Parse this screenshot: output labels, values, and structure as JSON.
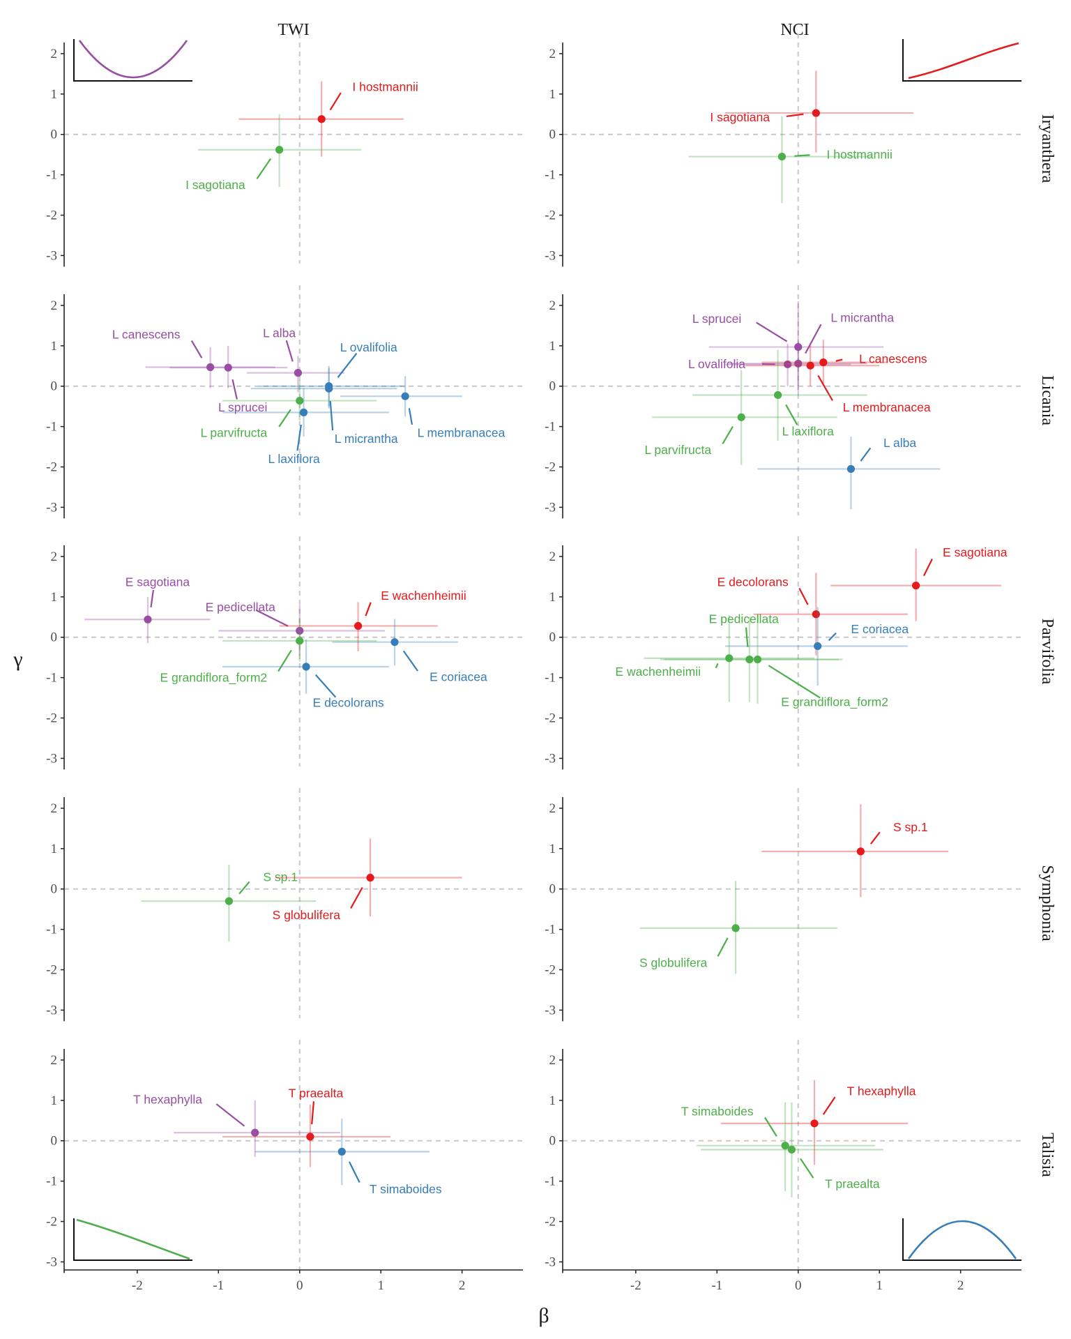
{
  "colors": {
    "red": "#e41a1c",
    "green": "#4daf4a",
    "blue": "#377eb8",
    "purple": "#984ea3"
  },
  "chart_data": {
    "type": "scatter",
    "xlabel": "β",
    "ylabel": "γ",
    "xlim": [
      -2.9,
      2.75
    ],
    "ylim": [
      -3.2,
      2.5
    ],
    "xticks": [
      -2,
      -1,
      0,
      1,
      2
    ],
    "yticks": [
      -3,
      -2,
      -1,
      0,
      1,
      2
    ],
    "grid": false,
    "reference_lines": {
      "x": 0,
      "y": 0,
      "style": "dashed"
    },
    "columns": [
      "TWI",
      "NCI"
    ],
    "rows": [
      "Iryanthera",
      "Licania",
      "Parvifolia",
      "Symphonia",
      "Talisia"
    ],
    "insets": [
      {
        "row": 0,
        "col": 0,
        "position": "top-left",
        "shape": "u-shaped curve",
        "color": "purple"
      },
      {
        "row": 0,
        "col": 1,
        "position": "top-right",
        "shape": "increasing curve",
        "color": "red"
      },
      {
        "row": 4,
        "col": 0,
        "position": "bottom-left",
        "shape": "decreasing curve",
        "color": "green"
      },
      {
        "row": 4,
        "col": 1,
        "position": "bottom-right",
        "shape": "hump-shaped curve",
        "color": "blue"
      }
    ],
    "panels": [
      {
        "row": 0,
        "col": 0,
        "points": [
          {
            "label": "I hostmannii",
            "color": "red",
            "x": 0.27,
            "y": 0.38,
            "xlo": -0.75,
            "xhi": 1.28,
            "ylo": -0.55,
            "yhi": 1.32,
            "lx": 0.65,
            "ly": 1.18,
            "anchor": "start"
          },
          {
            "label": "I sagotiana",
            "color": "green",
            "x": -0.25,
            "y": -0.38,
            "xlo": -1.25,
            "xhi": 0.76,
            "ylo": -1.3,
            "yhi": 0.5,
            "lx": -0.67,
            "ly": -1.25,
            "anchor": "end"
          }
        ]
      },
      {
        "row": 0,
        "col": 1,
        "points": [
          {
            "label": "I sagotiana",
            "color": "red",
            "x": 0.22,
            "y": 0.53,
            "xlo": -0.9,
            "xhi": 1.42,
            "ylo": -0.45,
            "yhi": 1.58,
            "lx": -0.35,
            "ly": 0.43,
            "anchor": "end"
          },
          {
            "label": "I hostmannii",
            "color": "green",
            "x": -0.2,
            "y": -0.55,
            "xlo": -1.35,
            "xhi": 0.9,
            "ylo": -1.7,
            "yhi": 0.45,
            "lx": 0.35,
            "ly": -0.5,
            "anchor": "start"
          }
        ]
      },
      {
        "row": 1,
        "col": 0,
        "points": [
          {
            "label": "L canescens",
            "color": "purple",
            "x": -1.1,
            "y": 0.47,
            "xlo": -1.9,
            "xhi": -0.3,
            "ylo": -0.05,
            "yhi": 0.97,
            "lx": -1.47,
            "ly": 1.28,
            "anchor": "end"
          },
          {
            "label": "L sprucei",
            "color": "purple",
            "x": -0.88,
            "y": 0.46,
            "xlo": -1.6,
            "xhi": -0.15,
            "ylo": -0.05,
            "yhi": 1.0,
            "lx": -0.7,
            "ly": -0.52,
            "anchor": "middle"
          },
          {
            "label": "L alba",
            "color": "purple",
            "x": -0.02,
            "y": 0.33,
            "xlo": -0.65,
            "xhi": 0.55,
            "ylo": -0.15,
            "yhi": 0.75,
            "lx": -0.25,
            "ly": 1.32,
            "anchor": "middle"
          },
          {
            "label": "L ovalifolia",
            "color": "blue",
            "x": 0.36,
            "y": 0.0,
            "xlo": -0.5,
            "xhi": 1.3,
            "ylo": -0.5,
            "yhi": 0.5,
            "lx": 0.85,
            "ly": 0.96,
            "anchor": "middle"
          },
          {
            "label": "L membranacea",
            "color": "blue",
            "x": 1.3,
            "y": -0.25,
            "xlo": 0.5,
            "xhi": 2.0,
            "ylo": -0.75,
            "yhi": 0.25,
            "lx": 1.45,
            "ly": -1.15,
            "anchor": "start"
          },
          {
            "label": "L micrantha",
            "color": "blue",
            "x": 0.36,
            "y": -0.06,
            "xlo": -0.6,
            "xhi": 1.2,
            "ylo": -0.55,
            "yhi": 0.45,
            "lx": 0.43,
            "ly": -1.3,
            "anchor": "start"
          },
          {
            "label": "L parvifructa",
            "color": "green",
            "x": 0.0,
            "y": -0.36,
            "xlo": -0.95,
            "xhi": 0.95,
            "ylo": -0.85,
            "yhi": 0.15,
            "lx": -0.4,
            "ly": -1.15,
            "anchor": "end"
          },
          {
            "label": "L laxiflora",
            "color": "blue",
            "x": 0.05,
            "y": -0.65,
            "xlo": -0.95,
            "xhi": 1.1,
            "ylo": -1.25,
            "yhi": -0.05,
            "lx": -0.07,
            "ly": -1.8,
            "anchor": "middle"
          }
        ]
      },
      {
        "row": 1,
        "col": 1,
        "points": [
          {
            "label": "L sprucei",
            "color": "purple",
            "x": 0.0,
            "y": 0.97,
            "xlo": -1.1,
            "xhi": 1.05,
            "ylo": -0.2,
            "yhi": 2.1,
            "lx": -0.7,
            "ly": 1.67,
            "anchor": "end"
          },
          {
            "label": "L micrantha",
            "color": "purple",
            "x": 0.0,
            "y": 0.56,
            "xlo": -0.85,
            "xhi": 0.85,
            "ylo": 0.0,
            "yhi": 1.1,
            "lx": 0.4,
            "ly": 1.7,
            "anchor": "start"
          },
          {
            "label": "L ovalifolia",
            "color": "purple",
            "x": -0.13,
            "y": 0.54,
            "xlo": -0.9,
            "xhi": 0.65,
            "ylo": 0.0,
            "yhi": 1.05,
            "lx": -0.65,
            "ly": 0.55,
            "anchor": "end"
          },
          {
            "label": "L canescens",
            "color": "red",
            "x": 0.31,
            "y": 0.59,
            "xlo": -0.45,
            "xhi": 1.1,
            "ylo": 0.0,
            "yhi": 1.15,
            "lx": 0.75,
            "ly": 0.68,
            "anchor": "start"
          },
          {
            "label": "L membranacea",
            "color": "red",
            "x": 0.15,
            "y": 0.51,
            "xlo": -0.65,
            "xhi": 1.0,
            "ylo": 0.0,
            "yhi": 1.0,
            "lx": 0.55,
            "ly": -0.52,
            "anchor": "start"
          },
          {
            "label": "L laxiflora",
            "color": "green",
            "x": -0.25,
            "y": -0.22,
            "xlo": -1.3,
            "xhi": 0.85,
            "ylo": -1.35,
            "yhi": 0.9,
            "lx": 0.12,
            "ly": -1.12,
            "anchor": "middle"
          },
          {
            "label": "L parvifructa",
            "color": "green",
            "x": -0.7,
            "y": -0.77,
            "xlo": -1.8,
            "xhi": 0.48,
            "ylo": -1.95,
            "yhi": 0.4,
            "lx": -1.07,
            "ly": -1.58,
            "anchor": "end"
          },
          {
            "label": "L alba",
            "color": "blue",
            "x": 0.65,
            "y": -2.05,
            "xlo": -0.5,
            "xhi": 1.75,
            "ylo": -3.05,
            "yhi": -1.25,
            "lx": 1.05,
            "ly": -1.4,
            "anchor": "start"
          }
        ]
      },
      {
        "row": 2,
        "col": 0,
        "points": [
          {
            "label": "E sagotiana",
            "color": "purple",
            "x": -1.87,
            "y": 0.44,
            "xlo": -2.65,
            "xhi": -1.1,
            "ylo": -0.15,
            "yhi": 1.0,
            "lx": -1.75,
            "ly": 1.37,
            "anchor": "middle"
          },
          {
            "label": "E pedicellata",
            "color": "purple",
            "x": 0.0,
            "y": 0.16,
            "xlo": -1.0,
            "xhi": 1.05,
            "ylo": -0.45,
            "yhi": 0.8,
            "lx": -0.73,
            "ly": 0.75,
            "anchor": "middle"
          },
          {
            "label": "E wachenheimii",
            "color": "red",
            "x": 0.72,
            "y": 0.28,
            "xlo": -0.25,
            "xhi": 1.7,
            "ylo": -0.35,
            "yhi": 0.87,
            "lx": 1.0,
            "ly": 1.03,
            "anchor": "start"
          },
          {
            "label": "E coriacea",
            "color": "blue",
            "x": 1.17,
            "y": -0.12,
            "xlo": 0.4,
            "xhi": 1.95,
            "ylo": -0.7,
            "yhi": 0.45,
            "lx": 1.6,
            "ly": -0.98,
            "anchor": "start"
          },
          {
            "label": "E grandiflora_form2",
            "color": "green",
            "x": 0.0,
            "y": -0.09,
            "xlo": -0.95,
            "xhi": 0.95,
            "ylo": -0.6,
            "yhi": 0.45,
            "lx": -0.4,
            "ly": -1.0,
            "anchor": "end"
          },
          {
            "label": "E decolorans",
            "color": "blue",
            "x": 0.08,
            "y": -0.73,
            "xlo": -0.95,
            "xhi": 1.1,
            "ylo": -1.4,
            "yhi": -0.05,
            "lx": 0.6,
            "ly": -1.62,
            "anchor": "middle"
          }
        ]
      },
      {
        "row": 2,
        "col": 1,
        "points": [
          {
            "label": "E sagotiana",
            "color": "red",
            "x": 1.45,
            "y": 1.28,
            "xlo": 0.4,
            "xhi": 2.5,
            "ylo": 0.4,
            "yhi": 2.2,
            "lx": 1.78,
            "ly": 2.1,
            "anchor": "start"
          },
          {
            "label": "E decolorans",
            "color": "red",
            "x": 0.22,
            "y": 0.57,
            "xlo": -0.55,
            "xhi": 1.35,
            "ylo": -0.45,
            "yhi": 1.6,
            "lx": -0.12,
            "ly": 1.37,
            "anchor": "end"
          },
          {
            "label": "E coriacea",
            "color": "blue",
            "x": 0.24,
            "y": -0.22,
            "xlo": -0.9,
            "xhi": 1.35,
            "ylo": -1.2,
            "yhi": 0.75,
            "lx": 0.65,
            "ly": 0.2,
            "anchor": "start"
          },
          {
            "label": "E pedicellata",
            "color": "green",
            "x": -0.6,
            "y": -0.55,
            "xlo": -1.7,
            "xhi": 0.5,
            "ylo": -1.6,
            "yhi": 0.5,
            "lx": -0.67,
            "ly": 0.45,
            "anchor": "middle"
          },
          {
            "label": "E wachenheimii",
            "color": "green",
            "x": -0.85,
            "y": -0.52,
            "xlo": -1.9,
            "xhi": 0.2,
            "ylo": -1.6,
            "yhi": 0.55,
            "lx": -1.2,
            "ly": -0.85,
            "anchor": "end"
          },
          {
            "label": "E grandiflora_form2",
            "color": "green",
            "x": -0.5,
            "y": -0.55,
            "xlo": -1.65,
            "xhi": 0.55,
            "ylo": -1.65,
            "yhi": 0.55,
            "lx": 0.45,
            "ly": -1.6,
            "anchor": "middle"
          }
        ]
      },
      {
        "row": 3,
        "col": 0,
        "points": [
          {
            "label": "S sp.1",
            "color": "green",
            "x": -0.87,
            "y": -0.3,
            "xlo": -1.95,
            "xhi": 0.2,
            "ylo": -1.3,
            "yhi": 0.6,
            "lx": -0.45,
            "ly": 0.3,
            "anchor": "start"
          },
          {
            "label": "S globulifera",
            "color": "red",
            "x": 0.87,
            "y": 0.28,
            "xlo": -0.3,
            "xhi": 2.0,
            "ylo": -0.68,
            "yhi": 1.25,
            "lx": 0.5,
            "ly": -0.64,
            "anchor": "end"
          }
        ]
      },
      {
        "row": 3,
        "col": 1,
        "points": [
          {
            "label": "S sp.1",
            "color": "red",
            "x": 0.77,
            "y": 0.93,
            "xlo": -0.45,
            "xhi": 1.85,
            "ylo": -0.2,
            "yhi": 2.1,
            "lx": 1.17,
            "ly": 1.53,
            "anchor": "start"
          },
          {
            "label": "S globulifera",
            "color": "green",
            "x": -0.77,
            "y": -0.97,
            "xlo": -1.95,
            "xhi": 0.48,
            "ylo": -2.1,
            "yhi": 0.2,
            "lx": -1.12,
            "ly": -1.83,
            "anchor": "end"
          }
        ]
      },
      {
        "row": 4,
        "col": 0,
        "points": [
          {
            "label": "T hexaphylla",
            "color": "purple",
            "x": -0.55,
            "y": 0.2,
            "xlo": -1.55,
            "xhi": 0.5,
            "ylo": -0.4,
            "yhi": 1.0,
            "lx": -1.2,
            "ly": 1.02,
            "anchor": "end"
          },
          {
            "label": "T praealta",
            "color": "red",
            "x": 0.13,
            "y": 0.1,
            "xlo": -0.95,
            "xhi": 1.12,
            "ylo": -0.65,
            "yhi": 0.9,
            "lx": 0.2,
            "ly": 1.18,
            "anchor": "middle"
          },
          {
            "label": "T simaboides",
            "color": "blue",
            "x": 0.52,
            "y": -0.27,
            "xlo": -0.55,
            "xhi": 1.6,
            "ylo": -1.1,
            "yhi": 0.55,
            "lx": 0.86,
            "ly": -1.2,
            "anchor": "start"
          }
        ]
      },
      {
        "row": 4,
        "col": 1,
        "points": [
          {
            "label": "T hexaphylla",
            "color": "red",
            "x": 0.2,
            "y": 0.43,
            "xlo": -0.95,
            "xhi": 1.35,
            "ylo": -0.6,
            "yhi": 1.5,
            "lx": 0.6,
            "ly": 1.23,
            "anchor": "start"
          },
          {
            "label": "T simaboides",
            "color": "green",
            "x": -0.16,
            "y": -0.12,
            "xlo": -1.25,
            "xhi": 0.95,
            "ylo": -1.25,
            "yhi": 0.95,
            "lx": -0.55,
            "ly": 0.73,
            "anchor": "end"
          },
          {
            "label": "T praealta",
            "color": "green",
            "x": -0.08,
            "y": -0.22,
            "xlo": -1.2,
            "xhi": 1.05,
            "ylo": -1.4,
            "yhi": 0.95,
            "lx": 0.33,
            "ly": -1.07,
            "anchor": "start"
          }
        ]
      }
    ]
  }
}
